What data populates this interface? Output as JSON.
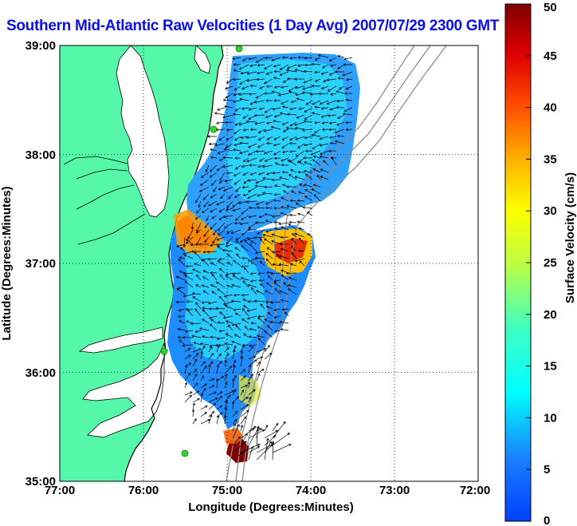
{
  "title": "Southern Mid-Atlantic Raw Velocities (1 Day Avg) 2007/07/29 2300 GMT",
  "map": {
    "xlabel": "Longitude (Degrees:Minutes)",
    "ylabel": "Latitude (Degrees:Minutes)",
    "x_ticks": [
      "77:00",
      "76:00",
      "75:00",
      "74:00",
      "73:00",
      "72:00"
    ],
    "y_ticks": [
      "39:00",
      "38:00",
      "37:00",
      "36:00",
      "35:00"
    ],
    "lon_range": [
      -77,
      -72
    ],
    "lat_range": [
      35,
      39
    ],
    "land_color": "#55f7a9",
    "coast_color": "#000000",
    "bathymetry_color": "#8c8c8c",
    "station_color": "#2fd62f",
    "grid": "dotted"
  },
  "colorbar": {
    "label": "Surface Velocity (cm/s)",
    "ticks": [
      "0",
      "5",
      "10",
      "15",
      "20",
      "25",
      "30",
      "35",
      "40",
      "45",
      "50"
    ],
    "range": [
      0,
      50
    ],
    "colormap": "jet"
  }
}
